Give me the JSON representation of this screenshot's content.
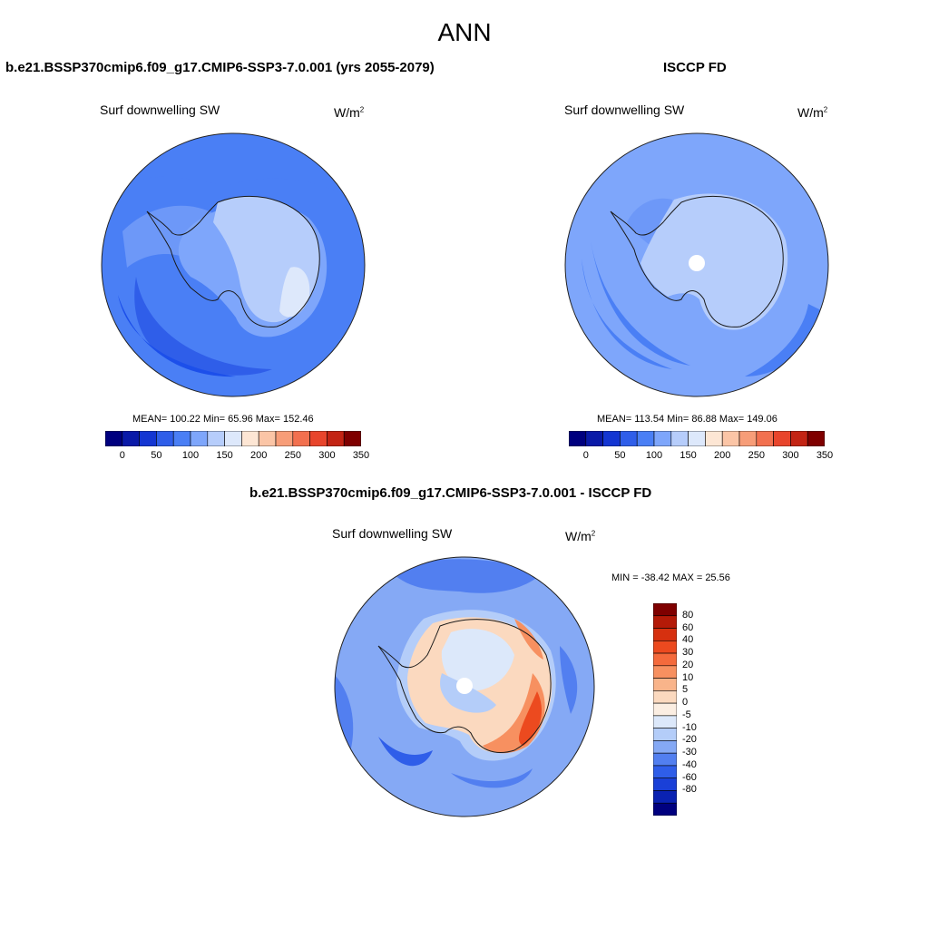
{
  "figure": {
    "season": "ANN"
  },
  "panels": [
    {
      "case_title": "b.e21.BSSP370cmip6.f09_g17.CMIP6-SSP3-7.0.001 (yrs 2055-2079)",
      "variable": "Surf downwelling SW",
      "units_base": "W/m",
      "units_exp": "2",
      "stats": "MEAN= 100.22  Min=  65.96  Max= 152.46",
      "colorbar_ticks": [
        "0",
        "50",
        "100",
        "150",
        "200",
        "250",
        "300",
        "350"
      ]
    },
    {
      "case_title": "ISCCP FD",
      "variable": "Surf downwelling SW",
      "units_base": "W/m",
      "units_exp": "2",
      "stats": "MEAN= 113.54  Min=  86.88  Max= 149.06",
      "colorbar_ticks": [
        "0",
        "50",
        "100",
        "150",
        "200",
        "250",
        "300",
        "350"
      ]
    },
    {
      "case_title": "b.e21.BSSP370cmip6.f09_g17.CMIP6-SSP3-7.0.001 - ISCCP FD",
      "variable": "Surf downwelling SW",
      "units_base": "W/m",
      "units_exp": "2",
      "stats": "MIN = -38.42 MAX =  25.56",
      "colorbar_ticks": [
        "80",
        "60",
        "40",
        "30",
        "20",
        "10",
        "5",
        "0",
        "-5",
        "-10",
        "-20",
        "-30",
        "-40",
        "-60",
        "-80"
      ]
    }
  ],
  "colors": {
    "abs_scale": [
      "#00007f",
      "#0a1aa8",
      "#1436d2",
      "#2f5ee9",
      "#4a7ff5",
      "#7ea6fb",
      "#b6cdfb",
      "#dde8fb",
      "#fde6d4",
      "#fbc5a6",
      "#f79d78",
      "#f2704f",
      "#e8452c",
      "#c32414",
      "#7f0000"
    ],
    "diff_scale": [
      "#7f0000",
      "#b41a08",
      "#d6300f",
      "#ec4a1f",
      "#f46a3c",
      "#f79060",
      "#f9b48a",
      "#fbd9bf",
      "#fbeee2",
      "#dce8fa",
      "#b4cdf9",
      "#85a9f5",
      "#527ff0",
      "#2f5ee9",
      "#1a40d8",
      "#0a22b2",
      "#00007f"
    ],
    "coastline": "#1a1a1a"
  }
}
